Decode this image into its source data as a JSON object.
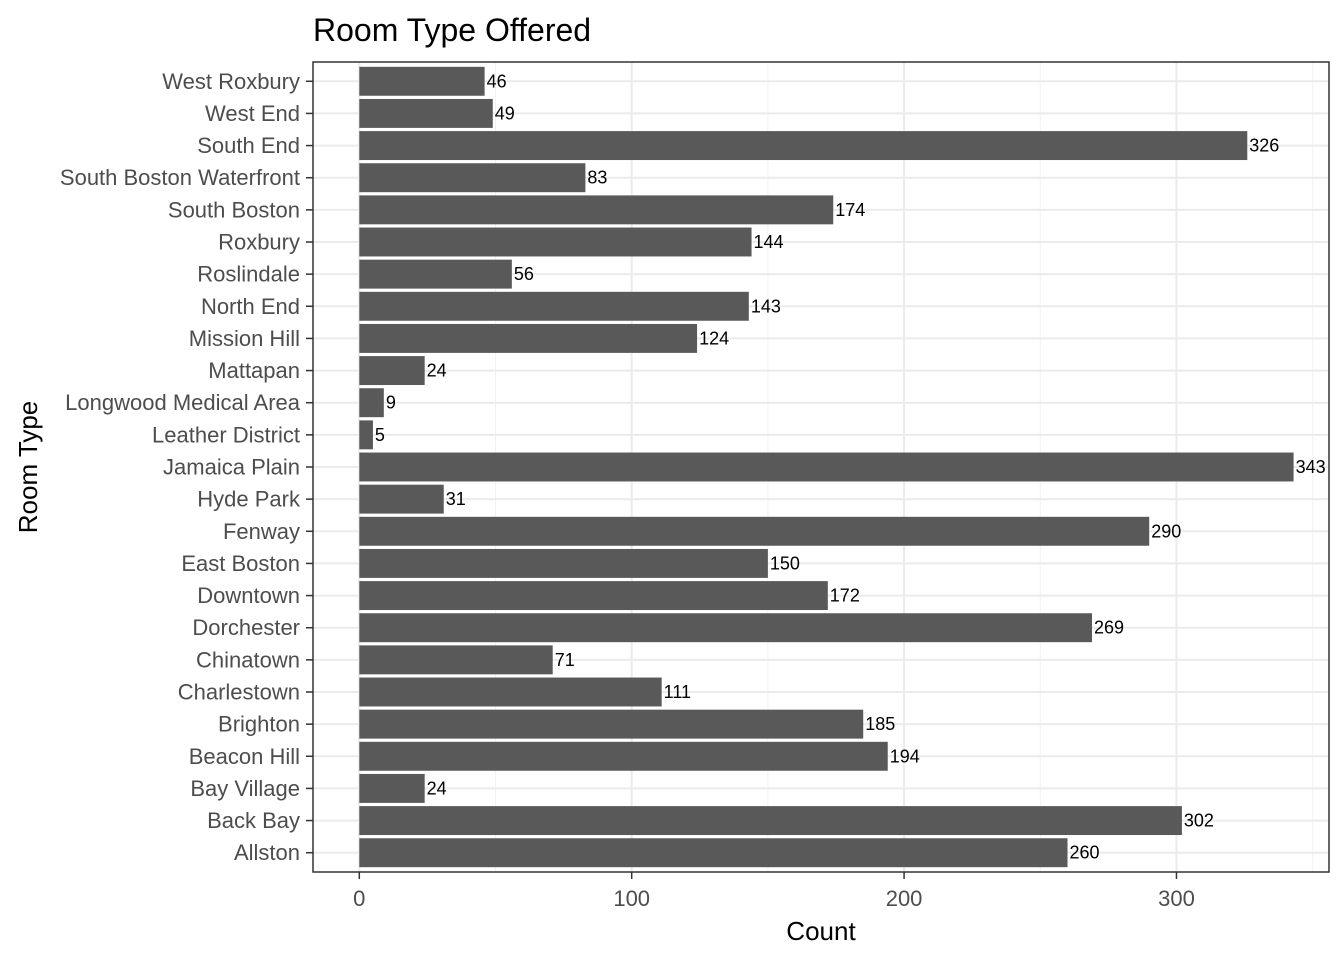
{
  "chart_data": {
    "type": "bar",
    "orientation": "horizontal",
    "title": "Room Type Offered",
    "xlabel": "Count",
    "ylabel": "Room Type",
    "xlim": [
      -17,
      356
    ],
    "xticks": [
      0,
      100,
      200,
      300
    ],
    "grid": true,
    "legend": "none",
    "bar_color": "#595959",
    "categories": [
      "Allston",
      "Back Bay",
      "Bay Village",
      "Beacon Hill",
      "Brighton",
      "Charlestown",
      "Chinatown",
      "Dorchester",
      "Downtown",
      "East Boston",
      "Fenway",
      "Hyde Park",
      "Jamaica Plain",
      "Leather District",
      "Longwood Medical Area",
      "Mattapan",
      "Mission Hill",
      "North End",
      "Roslindale",
      "Roxbury",
      "South Boston",
      "South Boston Waterfront",
      "South End",
      "West End",
      "West Roxbury"
    ],
    "values": [
      260,
      302,
      24,
      194,
      185,
      111,
      71,
      269,
      172,
      150,
      290,
      31,
      343,
      5,
      9,
      24,
      124,
      143,
      56,
      144,
      174,
      83,
      326,
      49,
      46
    ]
  }
}
